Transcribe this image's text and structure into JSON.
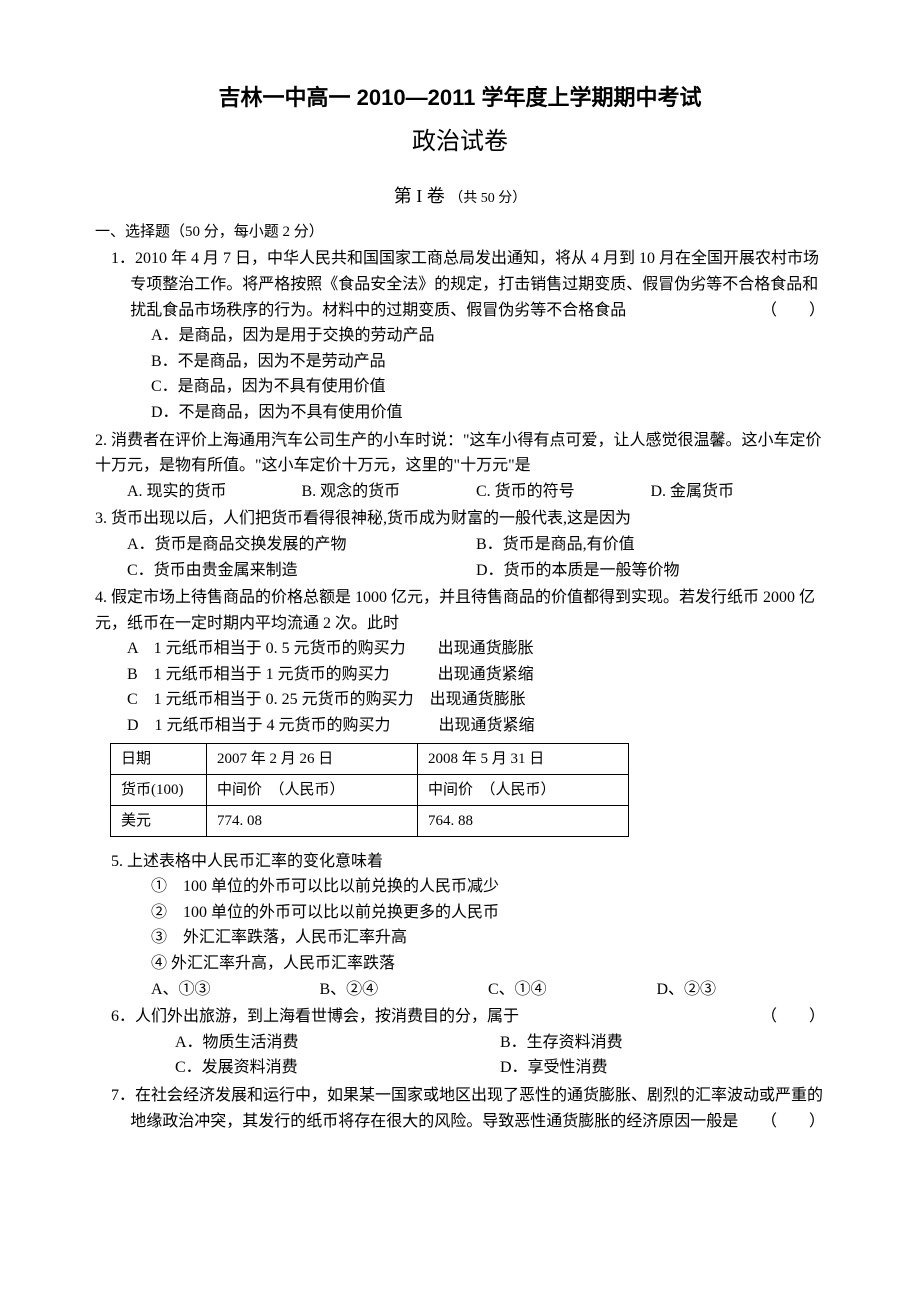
{
  "title_main": "吉林一中高一 2010—2011 学年度上学期期中考试",
  "title_sub": "政治试卷",
  "section_label": "第 I 卷",
  "section_note": "（共 50 分）",
  "instruction": "一、选择题（50 分，每小题 2 分）",
  "paren_marker": "（　　）",
  "q1": {
    "text": "1．2010 年 4 月 7 日，中华人民共和国国家工商总局发出通知，将从 4 月到 10 月在全国开展农村市场专项整治工作。将严格按照《食品安全法》的规定，打击销售过期变质、假冒伪劣等不合格食品和扰乱食品市场秩序的行为。材料中的过期变质、假冒伪劣等不合格食品",
    "a": "A．是商品，因为是用于交换的劳动产品",
    "b": "B．不是商品，因为不是劳动产品",
    "c": "C．是商品，因为不具有使用价值",
    "d": "D．不是商品，因为不具有使用价值"
  },
  "q2": {
    "text1": "2. 消费者在评价上海通用汽车公司生产的小车时说：\"这车小得有点可爱，让人感觉很温馨。这小车定价十万元，是物有所值。\"这小车定价十万元，这里的\"十万元\"是",
    "a": "A. 现实的货币",
    "b": "B. 观念的货币",
    "c": "C. 货币的符号",
    "d": "D. 金属货币"
  },
  "q3": {
    "text": "3. 货币出现以后，人们把货币看得很神秘,货币成为财富的一般代表,这是因为",
    "a": "A．货币是商品交换发展的产物",
    "b": "B．货币是商品,有价值",
    "c": "C．货币由贵金属来制造",
    "d": "D．货币的本质是一般等价物"
  },
  "q4": {
    "text": "4. 假定市场上待售商品的价格总额是 1000 亿元，并且待售商品的价值都得到实现。若发行纸币 2000 亿元，纸币在一定时期内平均流通 2 次。此时",
    "a": "A　1 元纸币相当于 0. 5 元货币的购买力　　出现通货膨胀",
    "b": "B　1 元纸币相当于 1 元货币的购买力　　　出现通货紧缩",
    "c": "C　1 元纸币相当于 0. 25 元货币的购买力　出现通货膨胀",
    "d": "D　1 元纸币相当于 4 元货币的购买力　　　出现通货紧缩"
  },
  "table": {
    "r1c1": "日期",
    "r1c2": "2007 年 2 月 26 日",
    "r1c3": "2008 年 5 月 31 日",
    "r2c1": "货币(100)",
    "r2c2": "中间价　（人民币）",
    "r2c3": "中间价　（人民币）",
    "r3c1": "美元",
    "r3c2": "774. 08",
    "r3c3": "764. 88"
  },
  "q5": {
    "text": "5. 上述表格中人民币汇率的变化意味着",
    "o1": "①　100 单位的外币可以比以前兑换的人民币减少",
    "o2": "②　100 单位的外币可以比以前兑换更多的人民币",
    "o3": "③　外汇汇率跌落，人民币汇率升高",
    "o4": "④ 外汇汇率升高，人民币汇率跌落",
    "a": "A、①③",
    "b": "B、②④",
    "c": "C、①④",
    "d": "D、②③"
  },
  "q6": {
    "text": "6．人们外出旅游，到上海看世博会，按消费目的分，属于",
    "a": "A．物质生活消费",
    "b": "B．生存资料消费",
    "c": "C．发展资料消费",
    "d": "D．享受性消费"
  },
  "q7": {
    "text": "7．在社会经济发展和运行中，如果某一国家或地区出现了恶性的通货膨胀、剧烈的汇率波动或严重的地缘政治冲突，其发行的纸币将存在很大的风险。导致恶性通货膨胀的经济原因一般是"
  }
}
